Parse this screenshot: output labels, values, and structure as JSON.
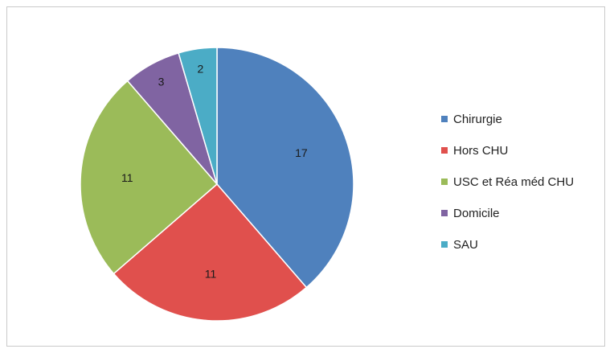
{
  "chart_data": {
    "type": "pie",
    "categories": [
      "Chirurgie",
      "Hors CHU",
      "USC et Réa méd CHU",
      "Domicile",
      "SAU"
    ],
    "values": [
      17,
      11,
      11,
      3,
      2
    ],
    "colors": [
      "#4f81bd",
      "#e0504d",
      "#9bbb59",
      "#8064a2",
      "#4bacc6"
    ],
    "legend_position": "right",
    "start_angle_deg": 0,
    "direction": "clockwise"
  }
}
